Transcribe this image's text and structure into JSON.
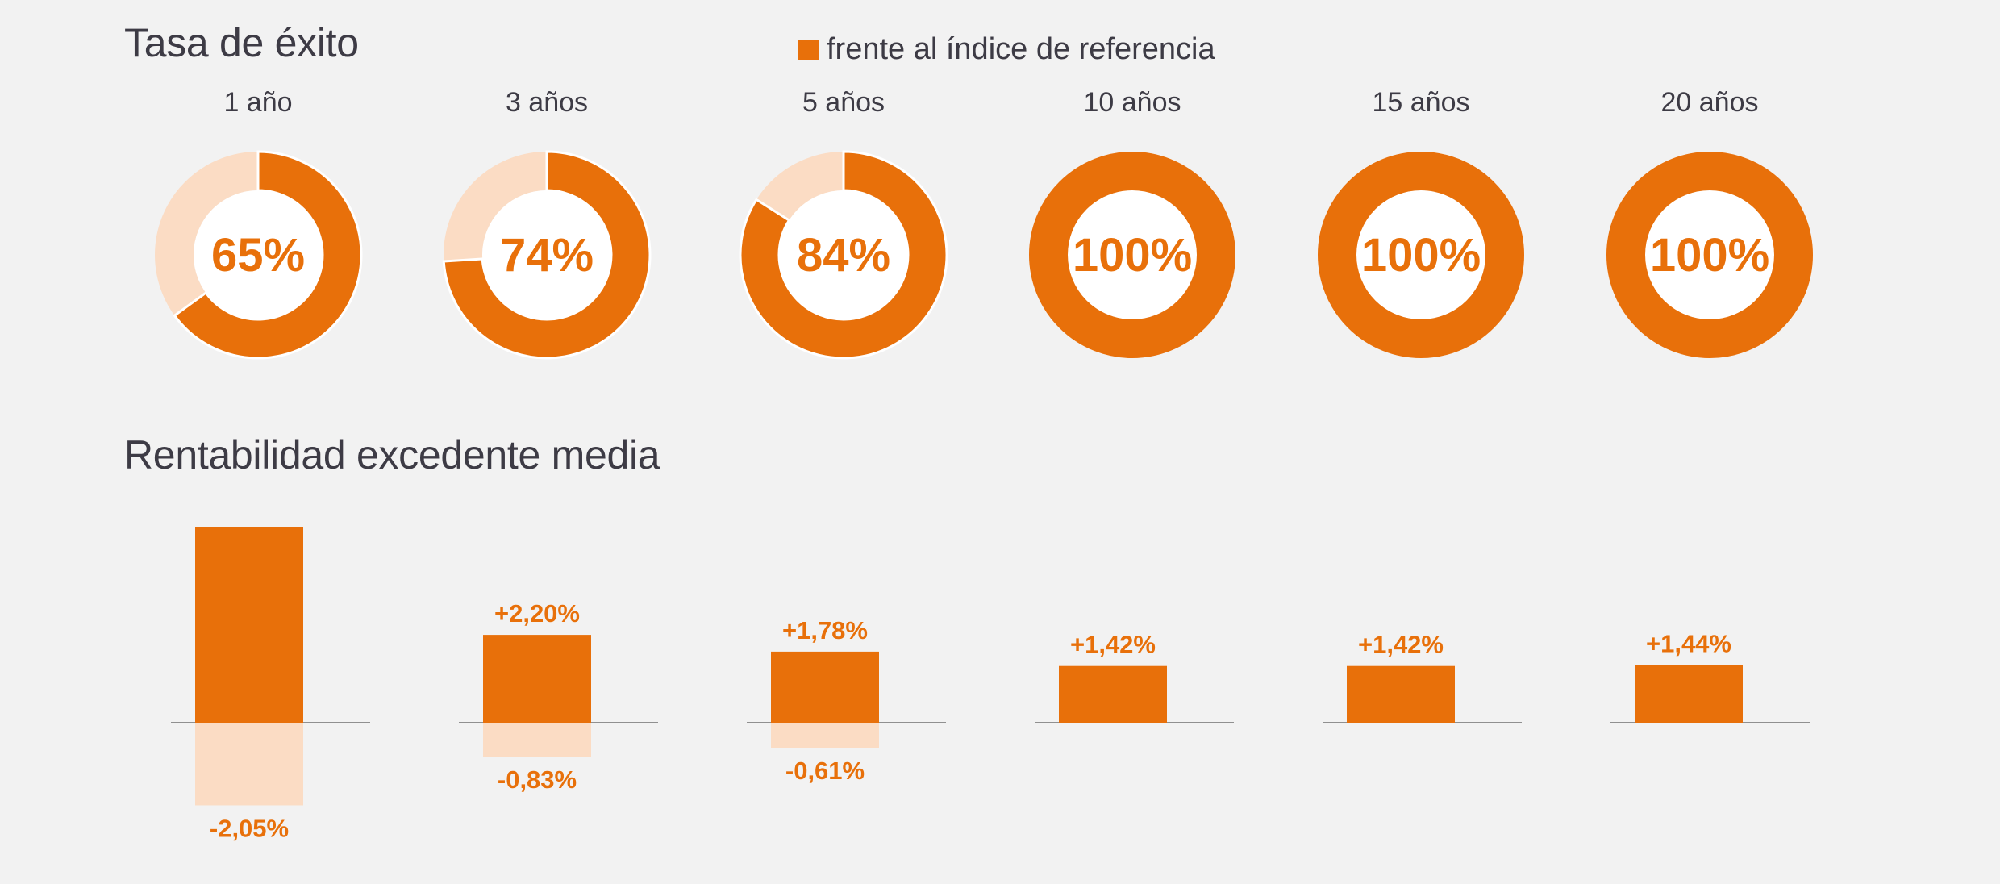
{
  "legend": {
    "label": "frente al índice de referencia",
    "color": "#e8700a"
  },
  "colors": {
    "primary": "#e8700a",
    "light": "#fbdcc4",
    "text": "#3d3b45",
    "axis": "#6f6f6f",
    "background": "#f2f2f2"
  },
  "chart_data": [
    {
      "type": "pie",
      "title": "Tasa de éxito",
      "variant": "donut",
      "categories": [
        "1 año",
        "3 años",
        "5 años",
        "10 años",
        "15 años",
        "20 años"
      ],
      "values": [
        65,
        74,
        84,
        100,
        100,
        100
      ],
      "labels": [
        "65%",
        "74%",
        "84%",
        "100%",
        "100%",
        "100%"
      ],
      "series": [
        {
          "name": "frente al índice de referencia",
          "values": [
            65,
            74,
            84,
            100,
            100,
            100
          ]
        }
      ],
      "legend_position": "top"
    },
    {
      "type": "bar",
      "title": "Rentabilidad excedente media",
      "categories": [
        "1 año",
        "3 años",
        "5 años",
        "10 años",
        "15 años",
        "20 años"
      ],
      "positive": [
        null,
        2.2,
        1.78,
        1.42,
        1.42,
        1.44
      ],
      "positive_labels": [
        "",
        "+2,20%",
        "+1,78%",
        "+1,42%",
        "+1,42%",
        "+1,44%"
      ],
      "negative": [
        -2.05,
        -0.83,
        -0.61,
        null,
        null,
        null
      ],
      "negative_labels": [
        "-2,05%",
        "-0,83%",
        "-0,61%",
        "",
        "",
        ""
      ],
      "positive_bar_heights_note": null
    }
  ]
}
